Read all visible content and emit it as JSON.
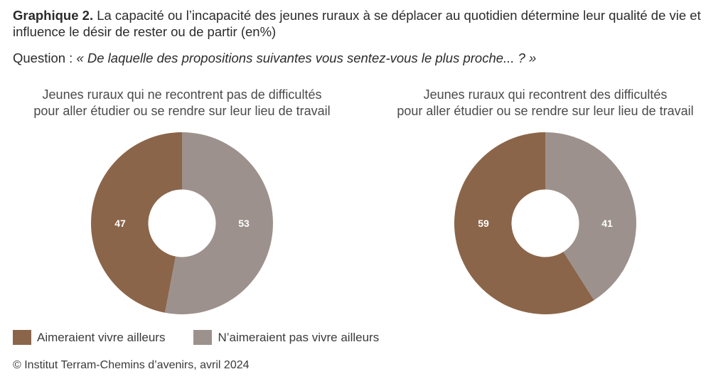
{
  "title": {
    "bold": "Graphique 2.",
    "text": " La capacité ou l’incapacité des jeunes ruraux à se déplacer au quotidien détermine leur qualité de vie et influence le désir de rester ou de partir (en%)"
  },
  "question": {
    "prefix": "Question : ",
    "text": "« De laquelle des propositions suivantes vous sentez-vous le plus proche... ? »"
  },
  "legend": [
    {
      "label": "Aimeraient vivre ailleurs",
      "color": "#8b6549"
    },
    {
      "label": "N’aimeraient pas vivre ailleurs",
      "color": "#9c918c"
    }
  ],
  "source": "© Institut Terram-Chemins d’avenirs, avril 2024",
  "chart_data": [
    {
      "type": "pie",
      "title": "Jeunes ruraux qui ne recontrent pas de difficultés\npour aller étudier ou se rendre sur leur lieu de travail",
      "categories": [
        "Aimeraient vivre ailleurs",
        "N’aimeraient pas vivre ailleurs"
      ],
      "values": [
        47,
        53
      ],
      "colors": [
        "#8b6549",
        "#9c918c"
      ],
      "donut": true
    },
    {
      "type": "pie",
      "title": "Jeunes ruraux qui  recontrent des difficultés\npour aller étudier ou se rendre sur leur lieu de travail",
      "categories": [
        "Aimeraient vivre ailleurs",
        "N’aimeraient pas vivre ailleurs"
      ],
      "values": [
        59,
        41
      ],
      "colors": [
        "#8b6549",
        "#9c918c"
      ],
      "donut": true
    }
  ]
}
